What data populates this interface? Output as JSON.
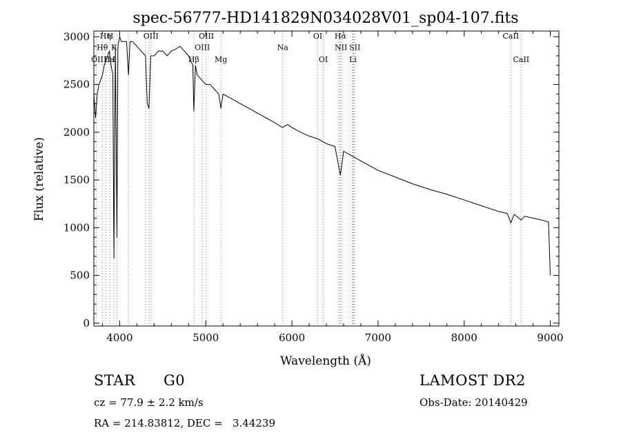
{
  "chart_data": {
    "type": "line",
    "title": "spec-56777-HD141829N034028V01_sp04-107.fits",
    "xlabel": "Wavelength (Å)",
    "ylabel": "Flux (relative)",
    "xlim": [
      3700,
      9100
    ],
    "ylim": [
      -30,
      3060
    ],
    "xticks": [
      4000,
      5000,
      6000,
      7000,
      8000,
      9000
    ],
    "yticks": [
      0,
      500,
      1000,
      1500,
      2000,
      2500,
      3000
    ],
    "grid": false,
    "series": [
      {
        "color": "#000000",
        "x": [
          3700,
          3720,
          3740,
          3760,
          3780,
          3800,
          3820,
          3840,
          3860,
          3880,
          3900,
          3920,
          3933,
          3950,
          3968,
          3980,
          4000,
          4020,
          4050,
          4080,
          4102,
          4120,
          4150,
          4200,
          4250,
          4300,
          4320,
          4340,
          4360,
          4400,
          4450,
          4500,
          4550,
          4600,
          4650,
          4700,
          4750,
          4800,
          4850,
          4861,
          4880,
          4900,
          4950,
          5000,
          5050,
          5100,
          5150,
          5175,
          5200,
          5300,
          5400,
          5500,
          5600,
          5700,
          5800,
          5890,
          5950,
          6000,
          6100,
          6200,
          6300,
          6400,
          6500,
          6563,
          6600,
          6700,
          6800,
          6900,
          7000,
          7200,
          7400,
          7600,
          7800,
          8000,
          8200,
          8400,
          8500,
          8542,
          8580,
          8662,
          8700,
          8800,
          8900,
          8980,
          9000
        ],
        "values": [
          2400,
          2150,
          2400,
          2500,
          2550,
          2600,
          2700,
          2750,
          2800,
          2850,
          2700,
          2600,
          680,
          2900,
          900,
          2900,
          3000,
          2950,
          2950,
          2950,
          2600,
          2950,
          2950,
          2900,
          2850,
          2800,
          2300,
          2250,
          2800,
          2800,
          2850,
          2850,
          2800,
          2850,
          2870,
          2900,
          2850,
          2800,
          2700,
          2220,
          2700,
          2600,
          2550,
          2500,
          2500,
          2450,
          2400,
          2250,
          2400,
          2350,
          2300,
          2250,
          2200,
          2150,
          2100,
          2050,
          2080,
          2050,
          2000,
          1960,
          1930,
          1880,
          1850,
          1550,
          1800,
          1750,
          1700,
          1650,
          1600,
          1530,
          1460,
          1400,
          1350,
          1290,
          1230,
          1170,
          1150,
          1050,
          1140,
          1080,
          1120,
          1100,
          1080,
          1060,
          500
        ]
      }
    ],
    "lines": [
      {
        "x": 3727,
        "color": "#808080"
      },
      {
        "x": 3798,
        "color": "#808080"
      },
      {
        "x": 3835,
        "color": "#808080"
      },
      {
        "x": 3889,
        "color": "#808080"
      },
      {
        "x": 3933,
        "color": "#808080"
      },
      {
        "x": 3968,
        "color": "#808080"
      },
      {
        "x": 4102,
        "color": "#808080"
      },
      {
        "x": 4300,
        "color": "#808080"
      },
      {
        "x": 4340,
        "color": "#808080"
      },
      {
        "x": 4363,
        "color": "#808080"
      },
      {
        "x": 4861,
        "color": "#808080"
      },
      {
        "x": 4959,
        "color": "#808080"
      },
      {
        "x": 5007,
        "color": "#808080"
      },
      {
        "x": 5175,
        "color": "#808080"
      },
      {
        "x": 5893,
        "color": "#808080"
      },
      {
        "x": 6300,
        "color": "#808080"
      },
      {
        "x": 6364,
        "color": "#808080"
      },
      {
        "x": 6548,
        "color": "#808080"
      },
      {
        "x": 6563,
        "color": "#ff0000"
      },
      {
        "x": 6583,
        "color": "#808080"
      },
      {
        "x": 6708,
        "color": "#ff0000"
      },
      {
        "x": 6716,
        "color": "#808080"
      },
      {
        "x": 6731,
        "color": "#808080"
      },
      {
        "x": 8542,
        "color": "#808080"
      },
      {
        "x": 8662,
        "color": "#808080"
      }
    ],
    "annotations": [
      {
        "text": "Hη",
        "x": 3835,
        "y": 2980
      },
      {
        "text": "H",
        "x": 3889,
        "y": 2980
      },
      {
        "text": "Hθ",
        "x": 3798,
        "y": 2860
      },
      {
        "text": "K",
        "x": 3933,
        "y": 2860
      },
      {
        "text": "OII",
        "x": 3740,
        "y": 2735
      },
      {
        "text": "H",
        "x": 3853,
        "y": 2735
      },
      {
        "text": "Ca",
        "x": 3880,
        "y": 2735
      },
      {
        "text": "I",
        "x": 3933,
        "y": 2735
      },
      {
        "text": "OIII",
        "x": 4363,
        "y": 2980
      },
      {
        "text": "OIII",
        "x": 5007,
        "y": 2980
      },
      {
        "text": "OIII",
        "x": 4959,
        "y": 2860
      },
      {
        "text": "Hβ",
        "x": 4861,
        "y": 2735
      },
      {
        "text": "Mg",
        "x": 5175,
        "y": 2735
      },
      {
        "text": "Na",
        "x": 5893,
        "y": 2860
      },
      {
        "text": "OI",
        "x": 6300,
        "y": 2980
      },
      {
        "text": "OI",
        "x": 6364,
        "y": 2735
      },
      {
        "text": "Hα",
        "x": 6563,
        "y": 2980
      },
      {
        "text": "NII",
        "x": 6570,
        "y": 2860
      },
      {
        "text": "SII",
        "x": 6730,
        "y": 2860
      },
      {
        "text": "Li",
        "x": 6708,
        "y": 2735
      },
      {
        "text": "CaII",
        "x": 8542,
        "y": 2980
      },
      {
        "text": "CaII",
        "x": 8662,
        "y": 2735
      }
    ]
  },
  "info": {
    "object_class": "STAR",
    "subclass": "G0",
    "survey": "LAMOST DR2",
    "redshift": "cz = 77.9 ± 2.2 km/s",
    "obs_date": "Obs-Date: 20140429",
    "coordinates": "RA = 214.83812, DEC =   3.44239"
  }
}
